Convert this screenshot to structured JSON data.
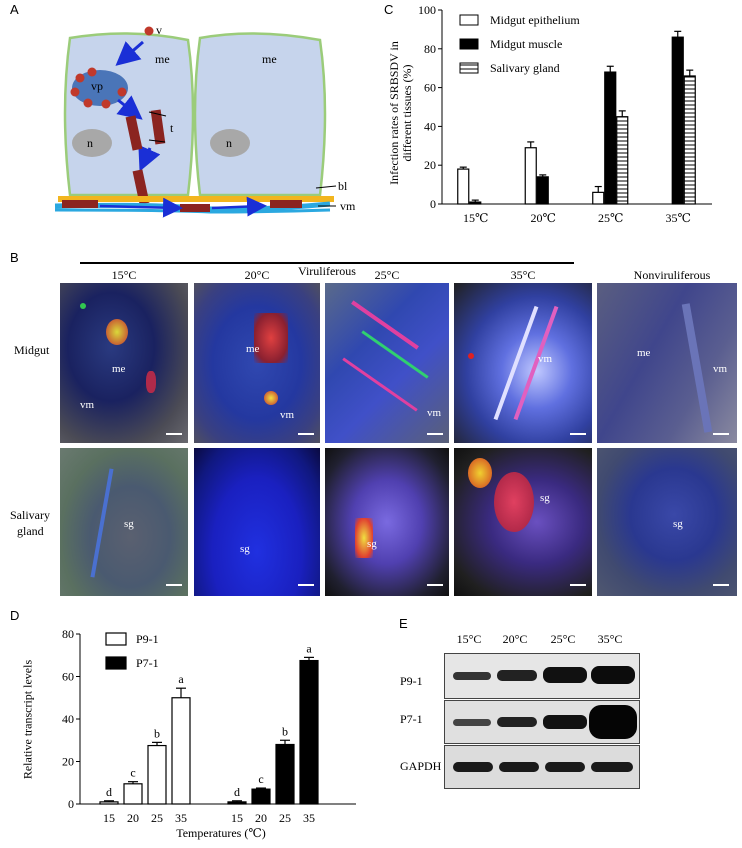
{
  "panel_labels": {
    "a": "A",
    "b": "B",
    "c": "C",
    "d": "D",
    "e": "E"
  },
  "diagram": {
    "me1": "me",
    "me2": "me",
    "v": "v",
    "vp": "vp",
    "t": "t",
    "n1": "n",
    "n2": "n",
    "bl": "bl",
    "vm": "vm",
    "colors": {
      "cell_fill": "#c6d4ec",
      "cell_border": "#9bcc7a",
      "particle": "#c0392b",
      "arrow": "#1a2fd6",
      "basal_lamina": "#f2b51e",
      "muscle": "#2ba8e0"
    }
  },
  "chart_c": {
    "ylabel_line1": "Infection rates of SRBSDV in",
    "ylabel_line2": "different tissues (%)",
    "ticks": [
      "0",
      "20",
      "40",
      "60",
      "80",
      "100"
    ],
    "categories": [
      "15℃",
      "20℃",
      "25℃",
      "35℃"
    ],
    "legend": [
      "Midgut epithelium",
      "Midgut muscle",
      "Salivary gland"
    ]
  },
  "panel_b": {
    "viruliferous": "Viruliferous",
    "nonviruliferous": "Nonviruliferous",
    "cols": [
      "15°C",
      "20°C",
      "25°C",
      "35°C"
    ],
    "row_midgut": "Midgut",
    "row_sg_1": "Salivary",
    "row_sg_2": "gland",
    "img_labels": {
      "m15_me": "me",
      "m15_vm": "vm",
      "m20_me": "me",
      "m20_vm": "vm",
      "m25_vm": "vm",
      "m35_vm": "vm",
      "mnv_me": "me",
      "mnv_vm": "vm",
      "s15": "sg",
      "s20": "sg",
      "s25": "sg",
      "s35": "sg",
      "snv": "sg"
    }
  },
  "chart_d": {
    "ylabel": "Relative transcript levels",
    "xlabel": "Temperatures (℃)",
    "ticks": [
      "0",
      "20",
      "40",
      "60",
      "80"
    ],
    "legend": [
      "P9-1",
      "P7-1"
    ],
    "x_ticks": [
      "15",
      "20",
      "25",
      "35",
      "15",
      "20",
      "25",
      "35"
    ],
    "sig_letters": [
      "d",
      "c",
      "b",
      "a",
      "d",
      "c",
      "b",
      "a"
    ]
  },
  "panel_e": {
    "cols": [
      "15°C",
      "20°C",
      "25°C",
      "35°C"
    ],
    "rows": [
      "P9-1",
      "P7-1",
      "GAPDH"
    ]
  },
  "chart_data": [
    {
      "type": "bar",
      "title": "",
      "categories": [
        "15℃",
        "20℃",
        "25℃",
        "35℃"
      ],
      "series": [
        {
          "name": "Midgut epithelium",
          "values": [
            18,
            29,
            6,
            0
          ],
          "errors": [
            1,
            3,
            3,
            0
          ]
        },
        {
          "name": "Midgut muscle",
          "values": [
            1,
            14,
            68,
            86
          ],
          "errors": [
            1,
            1,
            3,
            3
          ]
        },
        {
          "name": "Salivary gland",
          "values": [
            0,
            0,
            45,
            66
          ],
          "errors": [
            0,
            0,
            3,
            3
          ]
        }
      ],
      "ylabel": "Infection rates of SRBSDV in different tissues (%)",
      "ylim": [
        0,
        100
      ],
      "legend": "top-left"
    },
    {
      "type": "bar",
      "title": "",
      "categories": [
        "15",
        "20",
        "25",
        "35"
      ],
      "series": [
        {
          "name": "P9-1",
          "values": [
            1,
            9.5,
            27.5,
            50
          ],
          "errors": [
            0.5,
            1,
            1.5,
            4.5
          ],
          "letters": [
            "d",
            "c",
            "b",
            "a"
          ]
        },
        {
          "name": "P7-1",
          "values": [
            1,
            7,
            28,
            67.5
          ],
          "errors": [
            0.5,
            0.5,
            2,
            1.5
          ],
          "letters": [
            "d",
            "c",
            "b",
            "a"
          ]
        }
      ],
      "xlabel": "Temperatures (℃)",
      "ylabel": "Relative transcript levels",
      "ylim": [
        0,
        80
      ],
      "legend": "top-left"
    }
  ]
}
